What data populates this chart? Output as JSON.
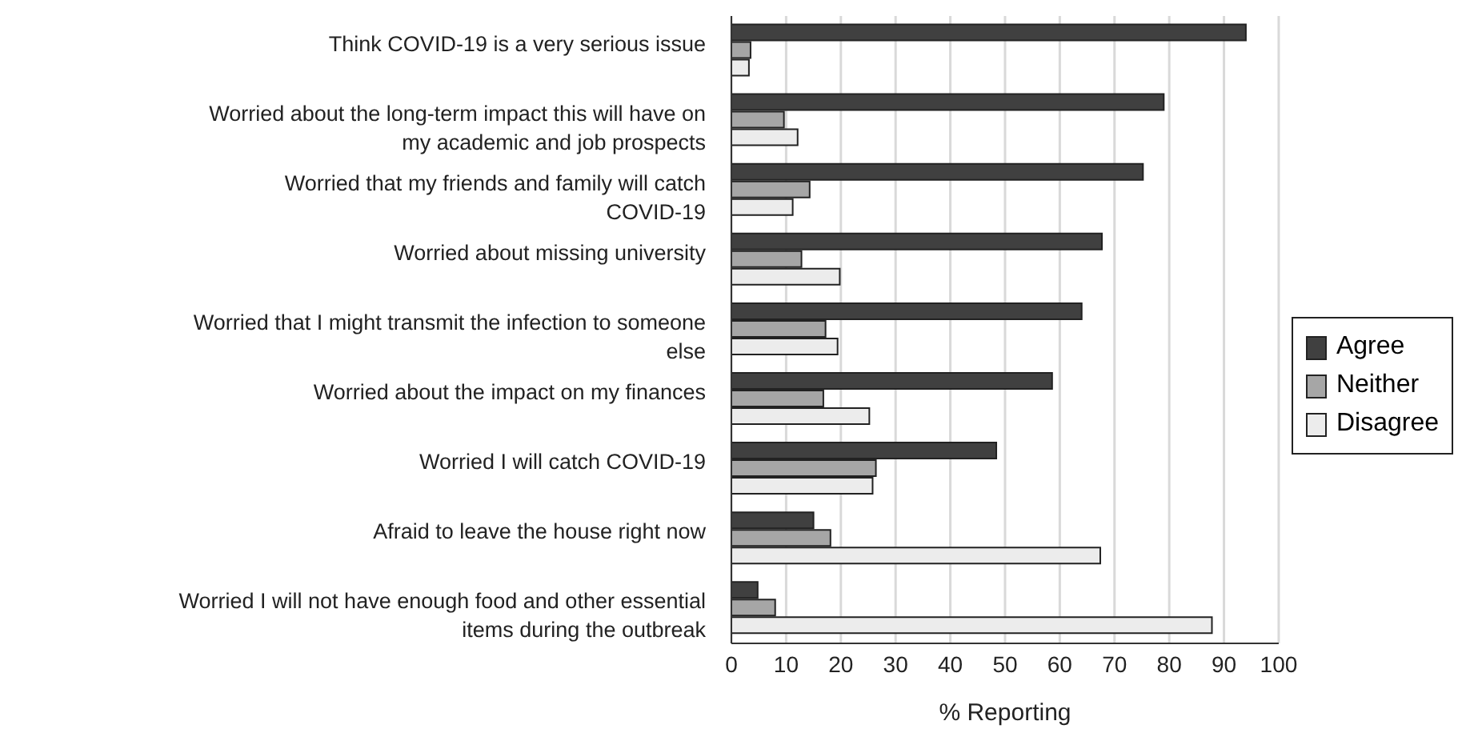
{
  "chart_data": {
    "type": "bar",
    "orientation": "horizontal",
    "xlabel": "% Reporting",
    "categories": [
      "Think COVID-19 is a very serious issue",
      "Worried about the long-term impact this will have on my academic and job prospects",
      "Worried that my friends and family will catch COVID-19",
      "Worried about missing university",
      "Worried that I might transmit the infection to someone else",
      "Worried about the impact on my finances",
      "Worried I will catch COVID-19",
      "Afraid to leave the house right now",
      "Worried I will not have enough food and other essential items during the outbreak"
    ],
    "series": [
      {
        "name": "Agree",
        "color": "#404040",
        "values": [
          94,
          79,
          75.2,
          67.7,
          64,
          58.6,
          48.4,
          15,
          4.8
        ]
      },
      {
        "name": "Neither",
        "color": "#a6a6a6",
        "values": [
          3.5,
          9.6,
          14.3,
          12.8,
          17.2,
          16.8,
          26.4,
          18.1,
          8
        ]
      },
      {
        "name": "Disagree",
        "color": "#ececec",
        "values": [
          3.2,
          12.1,
          11.2,
          19.8,
          19.4,
          25.2,
          25.8,
          67.4,
          87.8
        ]
      }
    ],
    "xlim": [
      0,
      100
    ],
    "xticks": [
      0,
      10,
      20,
      30,
      40,
      50,
      60,
      70,
      80,
      90,
      100
    ],
    "grid": "x",
    "legend": "right"
  }
}
